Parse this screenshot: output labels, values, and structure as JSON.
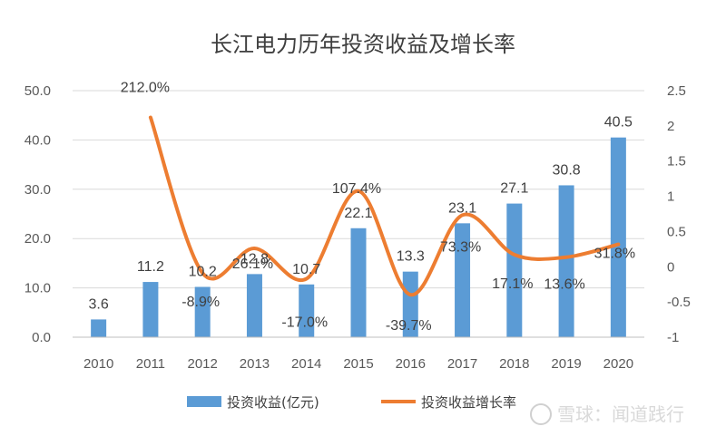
{
  "chart_data": {
    "type": "bar+line",
    "title": "长江电力历年投资收益及增长率",
    "categories": [
      "2010",
      "2011",
      "2012",
      "2013",
      "2014",
      "2015",
      "2016",
      "2017",
      "2018",
      "2019",
      "2020"
    ],
    "series": [
      {
        "name": "投资收益(亿元)",
        "type": "bar",
        "axis": "left",
        "color": "#5b9bd5",
        "values": [
          3.6,
          11.2,
          10.2,
          12.8,
          10.7,
          22.1,
          13.3,
          23.1,
          27.1,
          30.8,
          40.5
        ],
        "labels": [
          "3.6",
          "11.2",
          "10.2",
          "12.8",
          "10.7",
          "22.1",
          "13.3",
          "23.1",
          "27.1",
          "30.8",
          "40.5"
        ]
      },
      {
        "name": "投资收益增长率",
        "type": "line",
        "smooth": true,
        "axis": "right",
        "color": "#ed7d31",
        "values": [
          null,
          2.12,
          -0.089,
          0.261,
          -0.17,
          1.074,
          -0.397,
          0.733,
          0.171,
          0.136,
          0.318
        ],
        "labels": [
          "",
          "212.0%",
          "-8.9%",
          "26.1%",
          "-17.0%",
          "107.4%",
          "-39.7%",
          "73.3%",
          "17.1%",
          "13.6%",
          "31.8%"
        ]
      }
    ],
    "y_left": {
      "ylim": [
        0,
        50
      ],
      "ticks": [
        "0.0",
        "10.0",
        "20.0",
        "30.0",
        "40.0",
        "50.0"
      ]
    },
    "y_right": {
      "ylim": [
        -1,
        2.5
      ],
      "ticks": [
        "-1",
        "-0.5",
        "0",
        "0.5",
        "1",
        "1.5",
        "2",
        "2.5"
      ]
    },
    "grid": true,
    "legend_position": "bottom"
  },
  "watermark": "雪球：闻道践行"
}
